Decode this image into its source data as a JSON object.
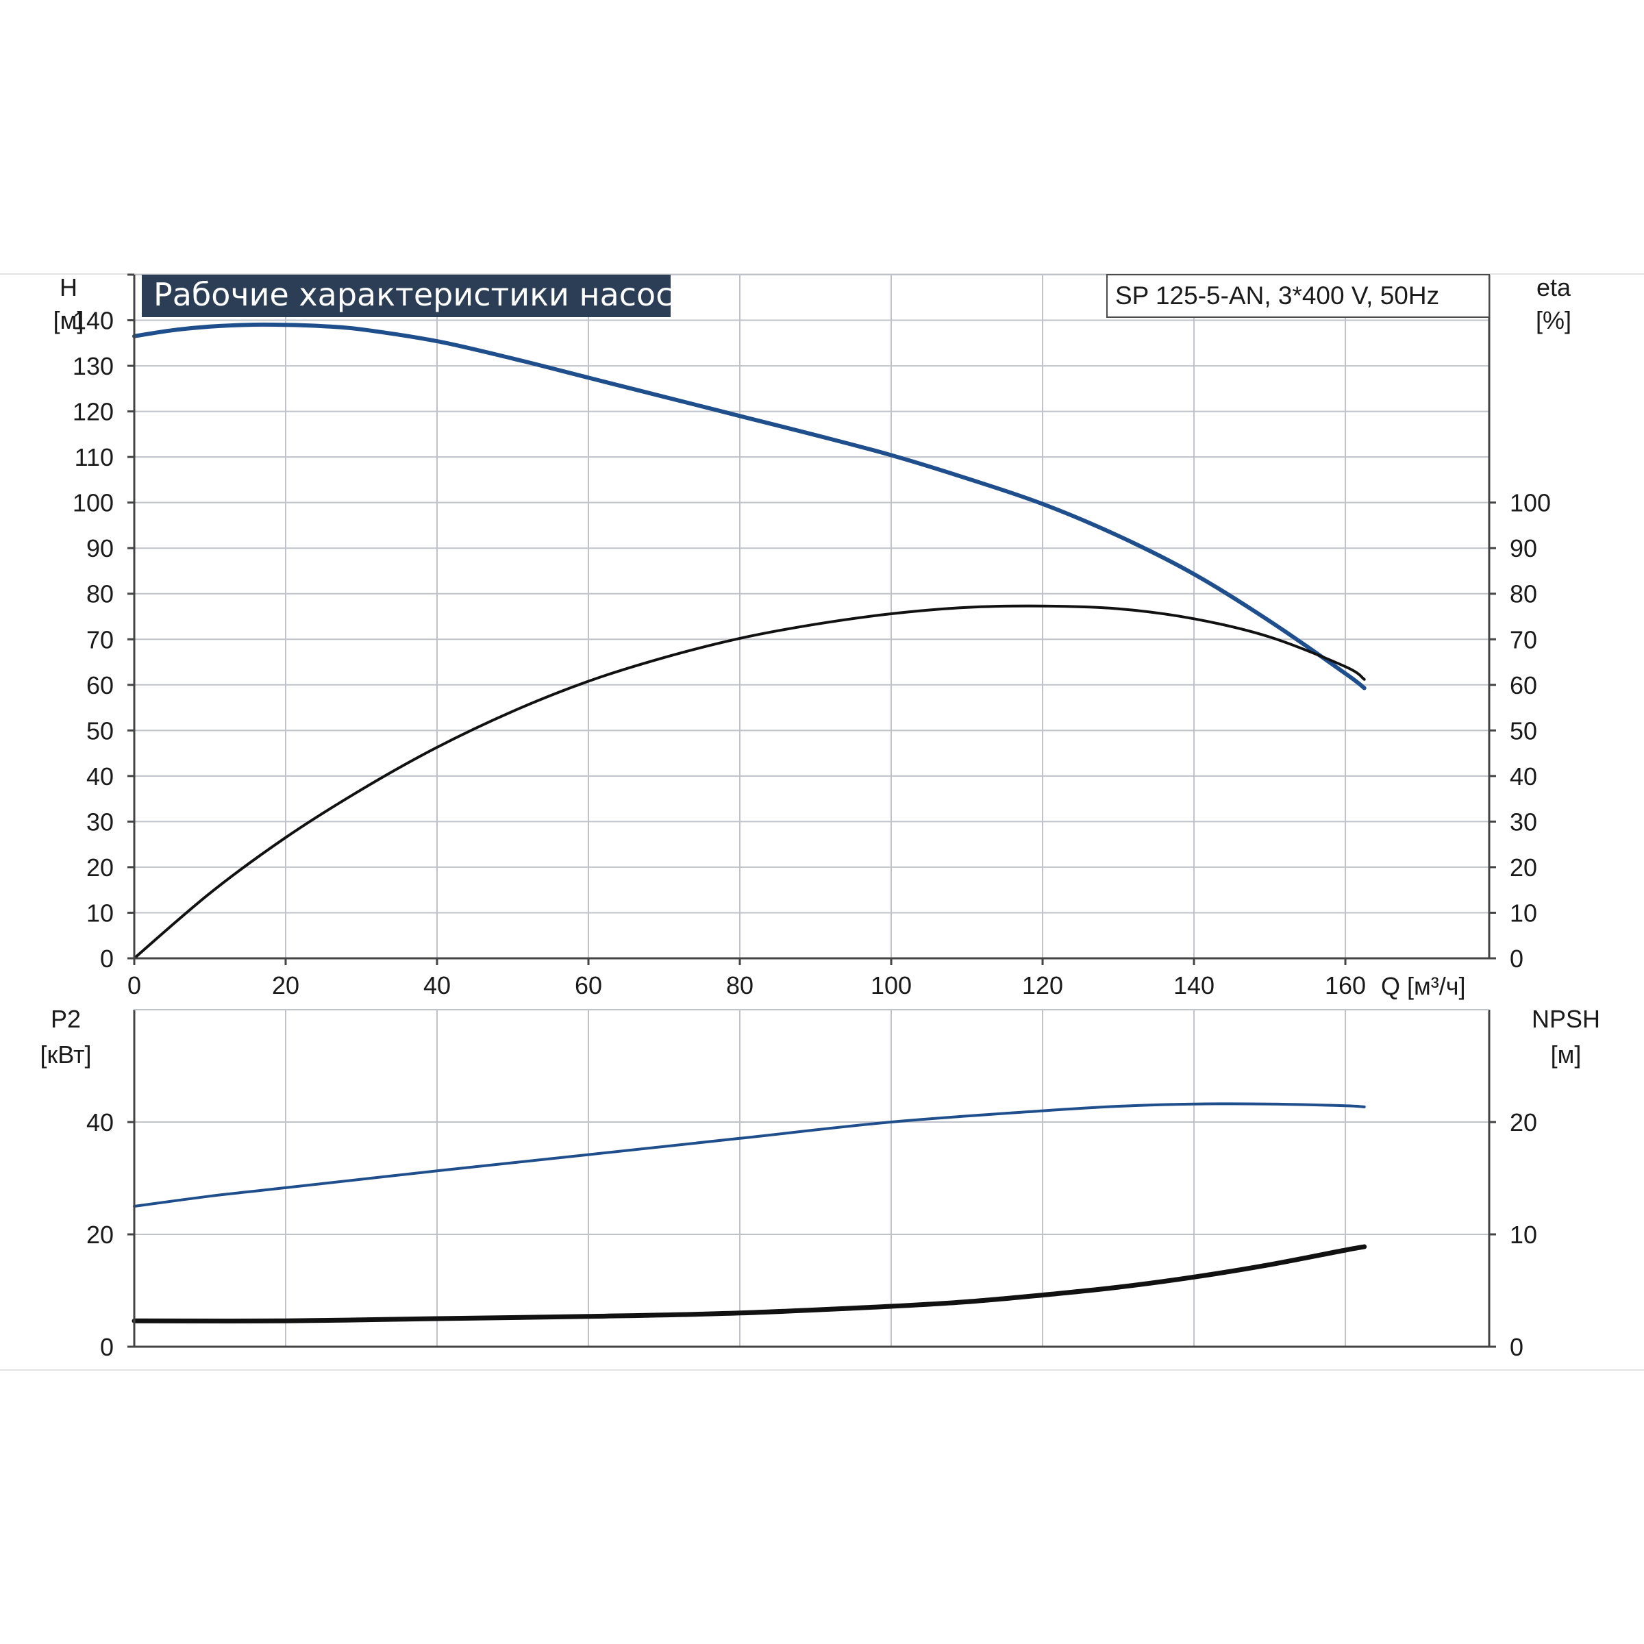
{
  "chart_data": [
    {
      "type": "line",
      "title": "Рабочие характеристики насоса",
      "subtitle": "SP 125-5-AN, 3*400 V, 50Hz",
      "xlabel": "Q [м³/ч]",
      "y_left_label": [
        "H",
        "[м]"
      ],
      "y_right_label": [
        "eta",
        "[%]"
      ],
      "xlim": [
        0,
        179
      ],
      "ylim_left": [
        0,
        150
      ],
      "ylim_right": [
        0,
        150
      ],
      "x_ticks": [
        "0",
        "20",
        "40",
        "60",
        "80",
        "100",
        "120",
        "140",
        "160"
      ],
      "y_left_ticks": [
        "0",
        "10",
        "20",
        "30",
        "40",
        "50",
        "60",
        "70",
        "80",
        "90",
        "100",
        "110",
        "120",
        "130",
        "140"
      ],
      "y_right_ticks": [
        "0",
        "10",
        "20",
        "30",
        "40",
        "50",
        "60",
        "70",
        "80",
        "90",
        "100"
      ],
      "grid": true,
      "series": [
        {
          "axis": "left",
          "color": "#1f4e8c",
          "x": [
            0,
            5,
            10,
            15,
            20,
            25,
            30,
            40,
            50,
            60,
            70,
            80,
            90,
            100,
            110,
            120,
            130,
            140,
            150,
            160,
            162.5
          ],
          "y": [
            136.5,
            137.8,
            138.6,
            139.0,
            139.0,
            138.7,
            138.0,
            135.4,
            131.6,
            127.4,
            123.2,
            119.0,
            114.8,
            110.4,
            105.3,
            99.7,
            92.7,
            84.3,
            74.0,
            62.5,
            59.3
          ]
        },
        {
          "axis": "right",
          "color": "#111111",
          "x": [
            0,
            10,
            20,
            30,
            40,
            50,
            60,
            70,
            80,
            90,
            100,
            110,
            120,
            130,
            140,
            150,
            160,
            162.5
          ],
          "y": [
            0,
            14.3,
            26.5,
            37.0,
            46.3,
            54.2,
            60.8,
            66.0,
            70.2,
            73.3,
            75.6,
            77.0,
            77.3,
            76.7,
            74.5,
            70.5,
            64.0,
            61.2
          ]
        }
      ]
    },
    {
      "type": "line",
      "xlim": [
        0,
        179
      ],
      "y_left_label": [
        "P2",
        "[кВт]"
      ],
      "y_right_label": [
        "NPSH",
        "[м]"
      ],
      "ylim_left": [
        0,
        60
      ],
      "ylim_right": [
        0,
        30
      ],
      "y_left_ticks": [
        "0",
        "20",
        "40"
      ],
      "y_right_ticks": [
        "0",
        "10",
        "20"
      ],
      "grid": true,
      "series": [
        {
          "axis": "left",
          "color": "#1f4e8c",
          "x": [
            0,
            10,
            20,
            40,
            60,
            80,
            100,
            120,
            130,
            140,
            150,
            160,
            162.5
          ],
          "y": [
            25.0,
            26.8,
            28.3,
            31.3,
            34.2,
            37.1,
            40.0,
            42.0,
            42.8,
            43.2,
            43.2,
            42.9,
            42.7
          ]
        },
        {
          "axis": "right",
          "color": "#111111",
          "x": [
            0,
            20,
            40,
            60,
            80,
            100,
            110,
            120,
            130,
            140,
            150,
            160,
            162.5
          ],
          "y": [
            2.3,
            2.3,
            2.5,
            2.7,
            3.0,
            3.6,
            4.0,
            4.6,
            5.3,
            6.2,
            7.3,
            8.6,
            8.9
          ]
        }
      ]
    }
  ]
}
